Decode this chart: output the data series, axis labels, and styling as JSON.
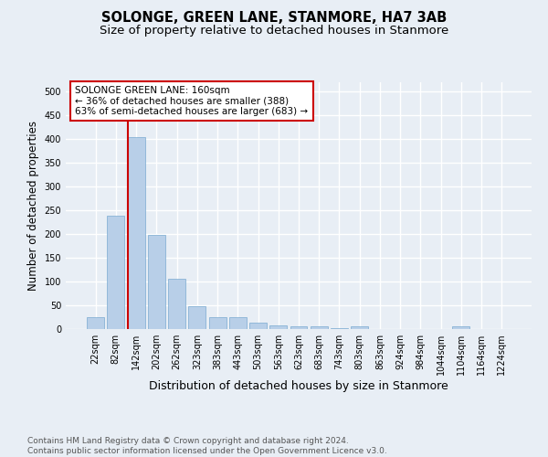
{
  "title": "SOLONGE, GREEN LANE, STANMORE, HA7 3AB",
  "subtitle": "Size of property relative to detached houses in Stanmore",
  "xlabel": "Distribution of detached houses by size in Stanmore",
  "ylabel": "Number of detached properties",
  "bar_values": [
    25,
    238,
    405,
    199,
    105,
    48,
    25,
    25,
    14,
    8,
    5,
    5,
    1,
    5,
    0,
    0,
    0,
    0,
    5,
    0,
    0
  ],
  "bar_labels": [
    "22sqm",
    "82sqm",
    "142sqm",
    "202sqm",
    "262sqm",
    "323sqm",
    "383sqm",
    "443sqm",
    "503sqm",
    "563sqm",
    "623sqm",
    "683sqm",
    "743sqm",
    "803sqm",
    "863sqm",
    "924sqm",
    "984sqm",
    "1044sqm",
    "1104sqm",
    "1164sqm",
    "1224sqm"
  ],
  "bar_color": "#b8cfe8",
  "bar_edge_color": "#7aaad0",
  "vline_color": "#cc0000",
  "annotation_text": "SOLONGE GREEN LANE: 160sqm\n← 36% of detached houses are smaller (388)\n63% of semi-detached houses are larger (683) →",
  "annotation_box_color": "#ffffff",
  "annotation_box_edge": "#cc0000",
  "ylim": [
    0,
    520
  ],
  "yticks": [
    0,
    50,
    100,
    150,
    200,
    250,
    300,
    350,
    400,
    450,
    500
  ],
  "background_color": "#e8eef5",
  "grid_color": "#ffffff",
  "footer_text": "Contains HM Land Registry data © Crown copyright and database right 2024.\nContains public sector information licensed under the Open Government Licence v3.0.",
  "title_fontsize": 10.5,
  "subtitle_fontsize": 9.5,
  "xlabel_fontsize": 9,
  "ylabel_fontsize": 8.5,
  "tick_fontsize": 7,
  "annotation_fontsize": 7.5,
  "footer_fontsize": 6.5
}
